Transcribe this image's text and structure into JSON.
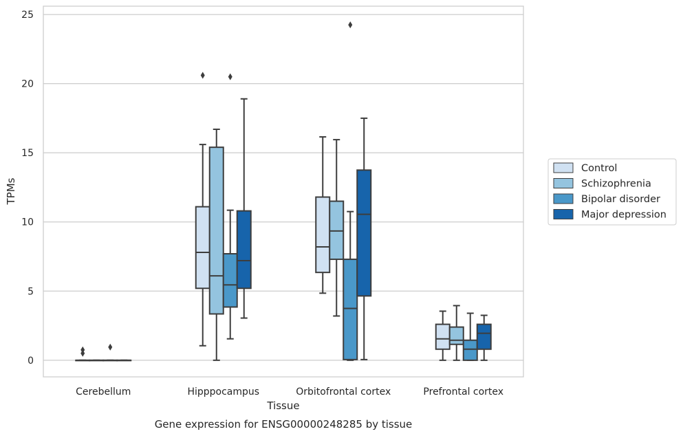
{
  "chart_data": {
    "type": "box",
    "caption": "Gene expression for ENSG00000248285 by tissue",
    "xlabel": "Tissue",
    "ylabel": "TPMs",
    "ylim": [
      -1.2,
      25.6
    ],
    "yticks": [
      0,
      5,
      10,
      15,
      20,
      25
    ],
    "grid": "horizontal",
    "legend_position": "right",
    "categories": [
      "Cerebellum",
      "Hipppocampus",
      "Orbitofrontal cortex",
      "Prefrontal cortex"
    ],
    "series": [
      {
        "name": "Control",
        "color": "#d0e1f2",
        "boxes": [
          {
            "whislo": 0,
            "q1": 0,
            "med": 0,
            "q3": 0,
            "whishi": 0,
            "fliers": [
              0.5,
              0.75
            ]
          },
          {
            "whislo": 1.05,
            "q1": 5.2,
            "med": 7.8,
            "q3": 11.1,
            "whishi": 15.6,
            "fliers": [
              20.6
            ]
          },
          {
            "whislo": 4.85,
            "q1": 6.35,
            "med": 8.2,
            "q3": 11.8,
            "whishi": 16.15,
            "fliers": []
          },
          {
            "whislo": 0,
            "q1": 0.8,
            "med": 1.55,
            "q3": 2.6,
            "whishi": 3.55,
            "fliers": []
          }
        ]
      },
      {
        "name": "Schizophrenia",
        "color": "#94c4df",
        "boxes": [
          {
            "whislo": 0,
            "q1": 0,
            "med": 0,
            "q3": 0,
            "whishi": 0,
            "fliers": []
          },
          {
            "whislo": 0,
            "q1": 3.35,
            "med": 6.1,
            "q3": 15.4,
            "whishi": 16.7,
            "fliers": []
          },
          {
            "whislo": 3.2,
            "q1": 7.3,
            "med": 9.35,
            "q3": 11.5,
            "whishi": 15.95,
            "fliers": []
          },
          {
            "whislo": 0,
            "q1": 1.15,
            "med": 1.45,
            "q3": 2.4,
            "whishi": 3.95,
            "fliers": []
          }
        ]
      },
      {
        "name": "Bipolar disorder",
        "color": "#4a98c9",
        "boxes": [
          {
            "whislo": 0,
            "q1": 0,
            "med": 0,
            "q3": 0,
            "whishi": 0,
            "fliers": [
              0.95
            ]
          },
          {
            "whislo": 1.55,
            "q1": 3.85,
            "med": 5.45,
            "q3": 7.7,
            "whishi": 10.85,
            "fliers": [
              20.5
            ]
          },
          {
            "whislo": 0,
            "q1": 0.05,
            "med": 3.75,
            "q3": 7.3,
            "whishi": 10.75,
            "fliers": [
              24.25
            ]
          },
          {
            "whislo": 0,
            "q1": 0,
            "med": 0.8,
            "q3": 1.45,
            "whishi": 3.4,
            "fliers": []
          }
        ]
      },
      {
        "name": "Major depression",
        "color": "#1764ab",
        "boxes": [
          {
            "whislo": 0,
            "q1": 0,
            "med": 0,
            "q3": 0,
            "whishi": 0,
            "fliers": []
          },
          {
            "whislo": 3.05,
            "q1": 5.2,
            "med": 7.2,
            "q3": 10.8,
            "whishi": 18.9,
            "fliers": []
          },
          {
            "whislo": 0.05,
            "q1": 4.65,
            "med": 10.55,
            "q3": 13.75,
            "whishi": 17.5,
            "fliers": []
          },
          {
            "whislo": 0,
            "q1": 0.8,
            "med": 1.95,
            "q3": 2.6,
            "whishi": 3.25,
            "fliers": []
          }
        ]
      }
    ]
  }
}
